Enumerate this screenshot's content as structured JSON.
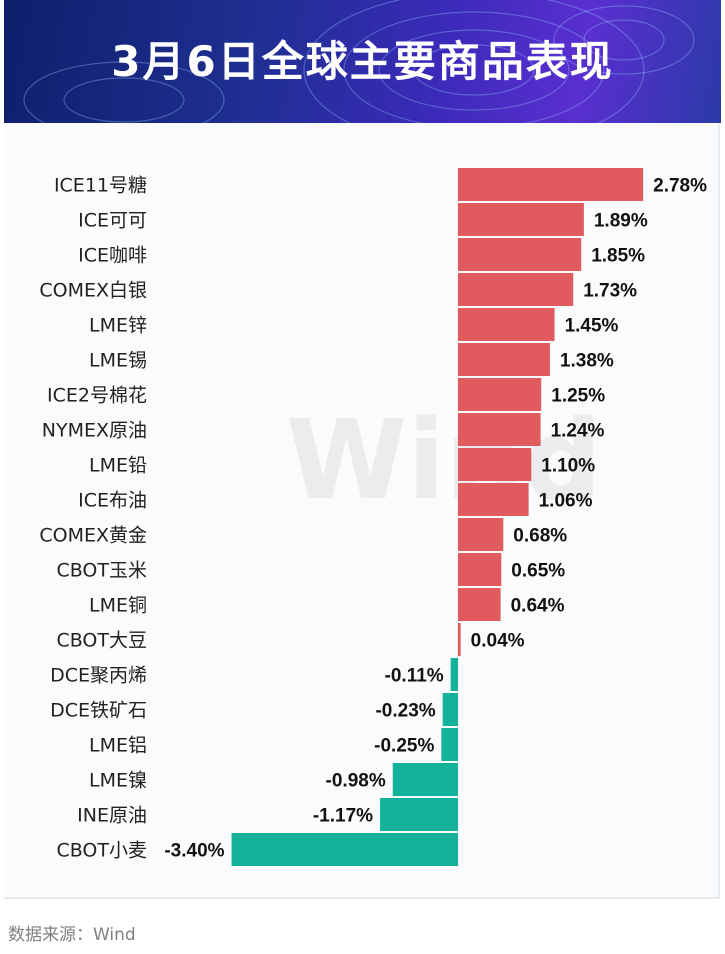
{
  "header": {
    "title": "3月6日全球主要商品表现"
  },
  "watermark": "Wind",
  "source_label": "数据来源：Wind",
  "colors": {
    "positive": "#e05a5e",
    "negative": "#13b39b",
    "label": "#222222",
    "value": "#111111"
  },
  "chart_data": {
    "type": "bar",
    "orientation": "horizontal",
    "title": "3月6日全球主要商品表现",
    "unit": "%",
    "categories": [
      "ICE11号糖",
      "ICE可可",
      "ICE咖啡",
      "COMEX白银",
      "LME锌",
      "LME锡",
      "ICE2号棉花",
      "NYMEX原油",
      "LME铅",
      "ICE布油",
      "COMEX黄金",
      "CBOT玉米",
      "LME铜",
      "CBOT大豆",
      "DCE聚丙烯",
      "DCE铁矿石",
      "LME铝",
      "LME镍",
      "INE原油",
      "CBOT小麦"
    ],
    "values": [
      2.78,
      1.89,
      1.85,
      1.73,
      1.45,
      1.38,
      1.25,
      1.24,
      1.1,
      1.06,
      0.68,
      0.65,
      0.64,
      0.04,
      -0.11,
      -0.23,
      -0.25,
      -0.98,
      -1.17,
      -3.4
    ],
    "value_labels": [
      "2.78%",
      "1.89%",
      "1.85%",
      "1.73%",
      "1.45%",
      "1.38%",
      "1.25%",
      "1.24%",
      "1.10%",
      "1.06%",
      "0.68%",
      "0.65%",
      "0.64%",
      "0.04%",
      "-0.11%",
      "-0.23%",
      "-0.25%",
      "-0.98%",
      "-1.17%",
      "-3.40%"
    ],
    "xlim": [
      -3.4,
      2.78
    ],
    "grid": false,
    "legend": "none"
  }
}
